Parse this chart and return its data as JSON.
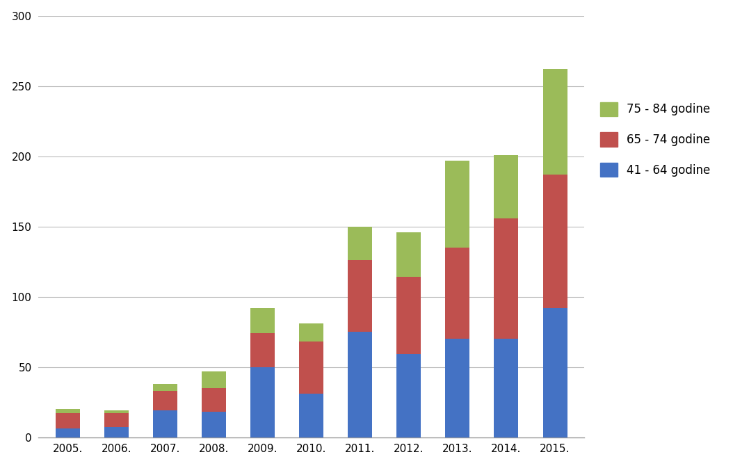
{
  "years": [
    "2005.",
    "2006.",
    "2007.",
    "2008.",
    "2009.",
    "2010.",
    "2011.",
    "2012.",
    "2013.",
    "2014.",
    "2015."
  ],
  "series": {
    "41 - 64 godine": [
      6,
      7,
      19,
      18,
      50,
      31,
      75,
      59,
      70,
      70,
      92
    ],
    "65 - 74 godine": [
      11,
      10,
      14,
      17,
      24,
      37,
      51,
      55,
      65,
      86,
      95
    ],
    "75 - 84 godine": [
      3,
      2,
      5,
      12,
      18,
      13,
      24,
      32,
      62,
      45,
      75
    ]
  },
  "colors": {
    "41 - 64 godine": "#4472C4",
    "65 - 74 godine": "#C0504D",
    "75 - 84 godine": "#9BBB59"
  },
  "ylim": [
    0,
    300
  ],
  "yticks": [
    0,
    50,
    100,
    150,
    200,
    250,
    300
  ],
  "background_color": "#FFFFFF",
  "legend_order": [
    "75 - 84 godine",
    "65 - 74 godine",
    "41 - 64 godine"
  ]
}
